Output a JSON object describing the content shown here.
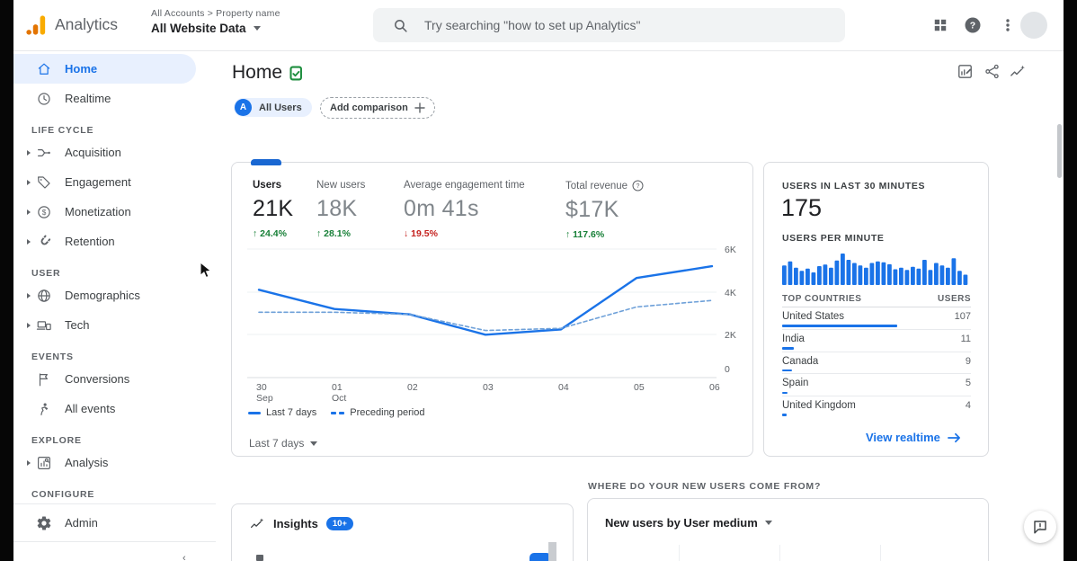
{
  "colors": {
    "accent": "#1a73e8",
    "accent_dark": "#1967d2",
    "positive": "#188038",
    "negative": "#c5221f",
    "bar": "#1a73e8",
    "dashed_line": "#6fa1d9"
  },
  "header": {
    "product_name": "Analytics",
    "breadcrumb": "All Accounts > Property name",
    "view_name": "All Website Data",
    "search_placeholder": "Try searching \"how to set up Analytics\""
  },
  "sidebar": {
    "groups": [
      {
        "header": null,
        "items": [
          {
            "label": "Home",
            "icon": "home",
            "active": true,
            "expandable": false
          },
          {
            "label": "Realtime",
            "icon": "clock",
            "active": false,
            "expandable": false
          }
        ]
      },
      {
        "header": "LIFE CYCLE",
        "items": [
          {
            "label": "Acquisition",
            "icon": "acquisition",
            "expandable": true
          },
          {
            "label": "Engagement",
            "icon": "tag",
            "expandable": true
          },
          {
            "label": "Monetization",
            "icon": "dollar",
            "expandable": true
          },
          {
            "label": "Retention",
            "icon": "magnet",
            "expandable": true
          }
        ]
      },
      {
        "header": "USER",
        "items": [
          {
            "label": "Demographics",
            "icon": "globe",
            "expandable": true
          },
          {
            "label": "Tech",
            "icon": "devices",
            "expandable": true
          }
        ]
      },
      {
        "header": "EVENTS",
        "items": [
          {
            "label": "Conversions",
            "icon": "flag",
            "expandable": false
          },
          {
            "label": "All events",
            "icon": "person",
            "expandable": false
          }
        ]
      },
      {
        "header": "EXPLORE",
        "items": [
          {
            "label": "Analysis",
            "icon": "analysis",
            "expandable": true
          }
        ]
      },
      {
        "header": "CONFIGURE",
        "divider_before_items": true,
        "divider_after_items": true,
        "items": [
          {
            "label": "Admin",
            "icon": "gear",
            "expandable": false
          }
        ]
      }
    ]
  },
  "main": {
    "title": "Home",
    "comparison": {
      "primary_badge": "A",
      "primary": "All Users",
      "add_label": "Add comparison"
    }
  },
  "overview": {
    "metrics": [
      {
        "label": "Users",
        "value": "21K",
        "delta": "24.4%",
        "direction": "up",
        "selected": true
      },
      {
        "label": "New users",
        "value": "18K",
        "delta": "28.1%",
        "direction": "up",
        "selected": false
      },
      {
        "label": "Average engagement time",
        "value": "0m 41s",
        "delta": "19.5%",
        "direction": "down",
        "selected": false
      },
      {
        "label": "Total revenue",
        "value": "$17K",
        "delta": "117.6%",
        "direction": "up",
        "selected": false,
        "has_help_icon": true
      }
    ],
    "chart_data": {
      "type": "line",
      "x": [
        "30 Sep",
        "01 Oct",
        "02",
        "03",
        "04",
        "05",
        "06"
      ],
      "series": [
        {
          "name": "Last 7 days",
          "style": "solid",
          "values_k": [
            4.1,
            3.2,
            2.95,
            2.0,
            2.25,
            4.65,
            5.2
          ]
        },
        {
          "name": "Preceding period",
          "style": "dashed",
          "values_k": [
            3.05,
            3.05,
            2.95,
            2.2,
            2.3,
            3.3,
            3.6
          ]
        }
      ],
      "yticks": [
        "6K",
        "4K",
        "2K",
        "0"
      ],
      "ylim_k": [
        0,
        6
      ],
      "grid": "horizontal",
      "legend_position": "bottom-left"
    },
    "range_label": "Last 7 days"
  },
  "realtime": {
    "title": "USERS IN LAST 30 MINUTES",
    "value": "175",
    "per_minute_label": "USERS PER MINUTE",
    "chart_data": {
      "type": "bar",
      "values": [
        62,
        75,
        55,
        45,
        52,
        40,
        60,
        65,
        55,
        78,
        100,
        80,
        70,
        62,
        55,
        70,
        75,
        72,
        66,
        50,
        55,
        48,
        58,
        52,
        80,
        48,
        70,
        62,
        55,
        85,
        45,
        33
      ]
    },
    "table": {
      "col_country": "TOP COUNTRIES",
      "col_users": "USERS",
      "rows": [
        {
          "country": "United States",
          "users": 107
        },
        {
          "country": "India",
          "users": 11
        },
        {
          "country": "Canada",
          "users": 9
        },
        {
          "country": "Spain",
          "users": 5
        },
        {
          "country": "United Kingdom",
          "users": 4
        }
      ]
    },
    "link_label": "View realtime"
  },
  "bottom": {
    "section_label": "WHERE DO YOUR NEW USERS COME FROM?",
    "insights_label": "Insights",
    "insights_badge": "10+",
    "medium_title": "New users by User medium"
  }
}
